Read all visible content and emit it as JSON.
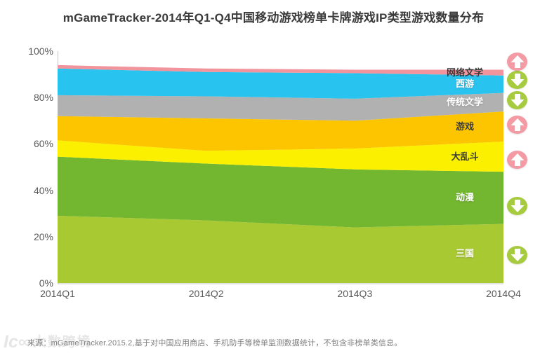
{
  "source_note": "来源：mGameTracker.2015.2,基于对中国应用商店、手机助手等榜单监测数据统计，不包含非榜单类信息。",
  "watermark": {
    "logo": "Ic∞",
    "brand": "大数跨境"
  },
  "colors": {
    "trend_up": "#f49aa4",
    "trend_down": "#a6cb3f",
    "axis_text": "#595959",
    "title_text": "#3a3a3a",
    "source_text": "#7f7f7f",
    "axis_line": "#c6c6c6",
    "arrow_glyph": "#ffffff"
  },
  "chart_data": {
    "type": "area",
    "stacked": true,
    "title": "mGameTracker-2014年Q1-Q4中国移动游戏榜单卡牌游戏IP类型游戏数量分布",
    "xlabel": "",
    "ylabel": "",
    "unit": "percent",
    "grid": false,
    "legend_position": "right-overlay",
    "x_categories": [
      "2014Q1",
      "2014Q2",
      "2014Q3",
      "2014Q4"
    ],
    "y_ticks": [
      0,
      20,
      40,
      60,
      80,
      100
    ],
    "y_tick_labels": [
      "0%",
      "20%",
      "40%",
      "60%",
      "80%",
      "100%"
    ],
    "ylim": [
      0,
      100
    ],
    "series": [
      {
        "name": "三国",
        "values": [
          29,
          27,
          24,
          25.5
        ],
        "color": "#a9c933",
        "label_color": "#ffffff",
        "trend": "down"
      },
      {
        "name": "动漫",
        "values": [
          25.5,
          24.5,
          25,
          22.5
        ],
        "color": "#72b72f",
        "label_color": "#ffffff",
        "trend": "down"
      },
      {
        "name": "大乱斗",
        "values": [
          7,
          5.5,
          9,
          13
        ],
        "color": "#faf000",
        "label_color": "#3a3a3a",
        "trend": "up"
      },
      {
        "name": "游戏",
        "values": [
          10.5,
          14,
          12,
          13
        ],
        "color": "#fdc500",
        "label_color": "#3a3a3a",
        "trend": "up"
      },
      {
        "name": "传统文学",
        "values": [
          9,
          9.5,
          9.5,
          8
        ],
        "color": "#b1b1b1",
        "label_color": "#ffffff",
        "trend": "down"
      },
      {
        "name": "西游",
        "values": [
          11.5,
          10.5,
          11,
          7.5
        ],
        "color": "#29c3ef",
        "label_color": "#ffffff",
        "trend": "down"
      },
      {
        "name": "网络文学",
        "values": [
          1.5,
          1.5,
          1.5,
          2.5
        ],
        "color": "#f2949c",
        "label_color": "#3a3a3a",
        "trend": "up"
      }
    ]
  }
}
